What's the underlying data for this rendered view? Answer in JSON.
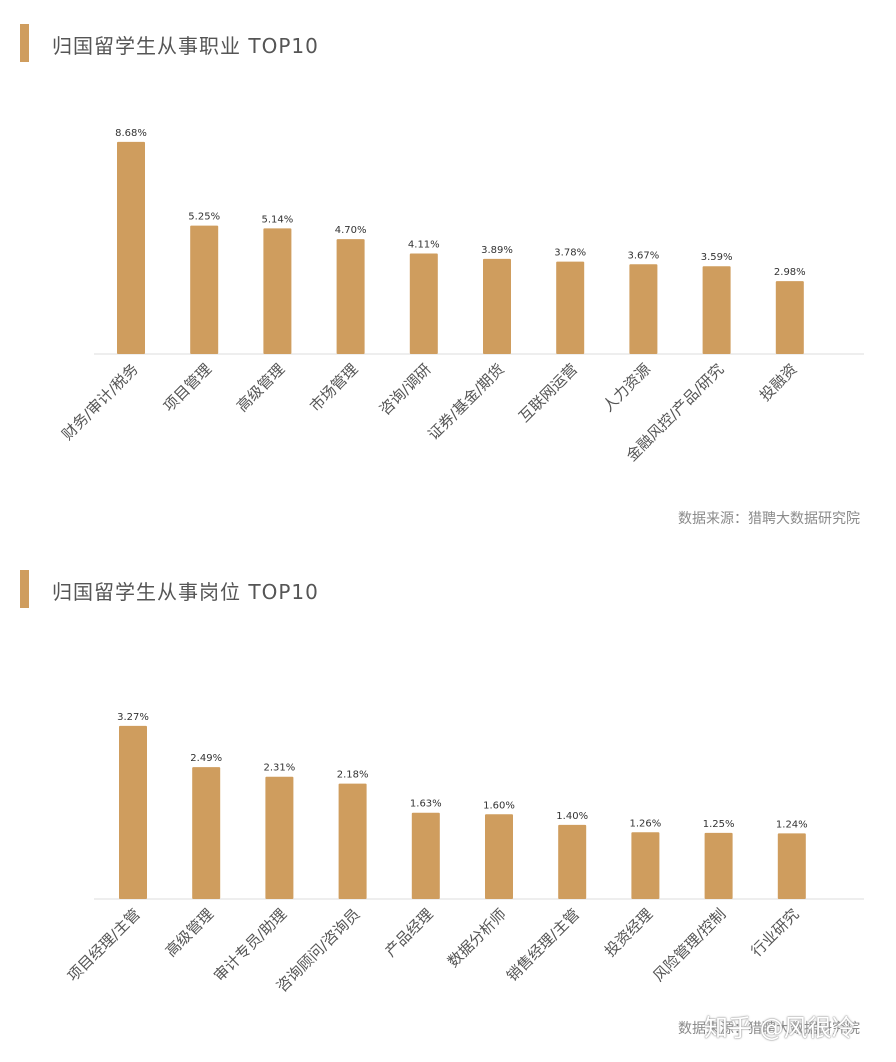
{
  "chart_data": [
    {
      "type": "bar",
      "title": "归国留学生从事职业 TOP10",
      "categories": [
        "财务/审计/税务",
        "项目管理",
        "高级管理",
        "市场管理",
        "咨询/调研",
        "证券/基金/期货",
        "互联网运营",
        "人力资源",
        "金融风控/产品/研究",
        "投融资"
      ],
      "values": [
        8.68,
        5.25,
        5.14,
        4.7,
        4.11,
        3.89,
        3.78,
        3.67,
        3.59,
        2.98
      ],
      "value_labels": [
        "8.68%",
        "5.25%",
        "5.14%",
        "4.70%",
        "4.11%",
        "3.89%",
        "3.78%",
        "3.67%",
        "3.59%",
        "2.98%"
      ],
      "ylim": [
        0,
        9
      ],
      "grid": false,
      "bar_color": "#cf9d5e",
      "source": "数据来源：猎聘大数据研究院"
    },
    {
      "type": "bar",
      "title": "归国留学生从事岗位 TOP10",
      "categories": [
        "项目经理/主管",
        "高级管理",
        "审计专员/助理",
        "咨询顾问/咨询员",
        "产品经理",
        "数据分析师",
        "销售经理/主管",
        "投资经理",
        "风险管理/控制",
        "行业研究"
      ],
      "values": [
        3.27,
        2.49,
        2.31,
        2.18,
        1.63,
        1.6,
        1.4,
        1.26,
        1.25,
        1.24
      ],
      "value_labels": [
        "3.27%",
        "2.49%",
        "2.31%",
        "2.18%",
        "1.63%",
        "1.60%",
        "1.40%",
        "1.26%",
        "1.25%",
        "1.24%"
      ],
      "ylim": [
        0,
        3.4
      ],
      "grid": false,
      "bar_color": "#cf9d5e",
      "source": "数据来源：猎聘大数据研究院"
    }
  ],
  "watermark": "知乎 @风很冷",
  "colors": {
    "accent": "#cf9d5e",
    "axis": "#dddddd"
  }
}
